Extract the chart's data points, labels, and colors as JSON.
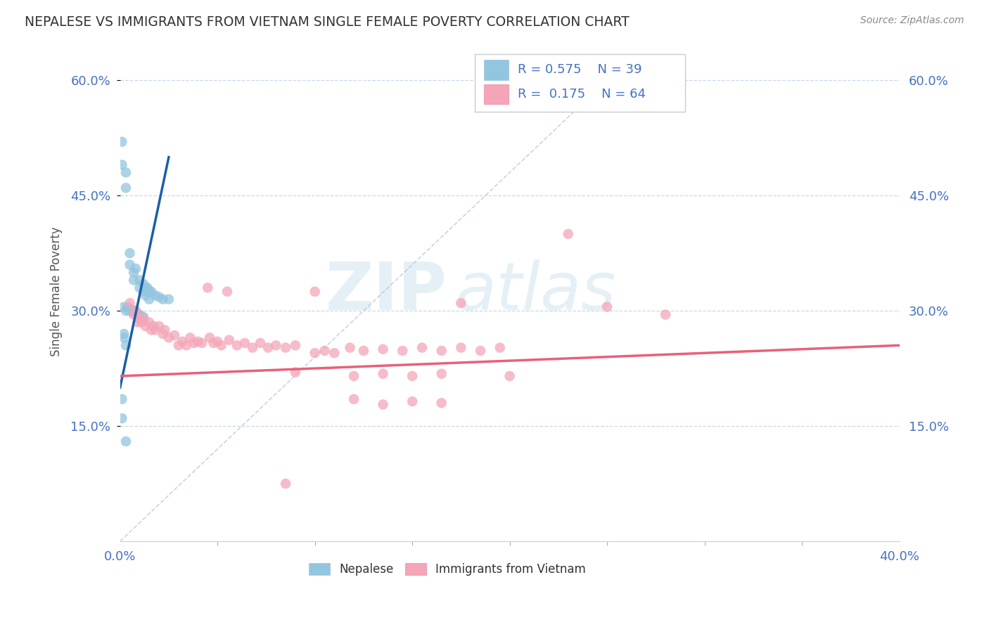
{
  "title": "NEPALESE VS IMMIGRANTS FROM VIETNAM SINGLE FEMALE POVERTY CORRELATION CHART",
  "source": "Source: ZipAtlas.com",
  "ylabel": "Single Female Poverty",
  "watermark_zip": "ZIP",
  "watermark_atlas": "atlas",
  "xmin": 0.0,
  "xmax": 0.4,
  "ymin": 0.0,
  "ymax": 0.65,
  "yticks": [
    0.15,
    0.3,
    0.45,
    0.6
  ],
  "ytick_labels": [
    "15.0%",
    "30.0%",
    "45.0%",
    "60.0%"
  ],
  "xticks": [
    0.0,
    0.4
  ],
  "xtick_labels": [
    "0.0%",
    "40.0%"
  ],
  "nepalese_color": "#92c5de",
  "vietnam_color": "#f4a6b8",
  "nepalese_line_color": "#1a5fa8",
  "vietnam_line_color": "#e8607a",
  "background_color": "#ffffff",
  "grid_color": "#c8d8ea",
  "nepalese_points": [
    [
      0.001,
      0.52
    ],
    [
      0.001,
      0.49
    ],
    [
      0.003,
      0.48
    ],
    [
      0.003,
      0.46
    ],
    [
      0.005,
      0.375
    ],
    [
      0.005,
      0.36
    ],
    [
      0.007,
      0.35
    ],
    [
      0.007,
      0.34
    ],
    [
      0.008,
      0.355
    ],
    [
      0.01,
      0.34
    ],
    [
      0.01,
      0.33
    ],
    [
      0.012,
      0.335
    ],
    [
      0.012,
      0.325
    ],
    [
      0.013,
      0.33
    ],
    [
      0.013,
      0.32
    ],
    [
      0.014,
      0.33
    ],
    [
      0.015,
      0.325
    ],
    [
      0.015,
      0.315
    ],
    [
      0.016,
      0.325
    ],
    [
      0.018,
      0.32
    ],
    [
      0.02,
      0.318
    ],
    [
      0.022,
      0.315
    ],
    [
      0.025,
      0.315
    ],
    [
      0.002,
      0.305
    ],
    [
      0.003,
      0.3
    ],
    [
      0.004,
      0.305
    ],
    [
      0.005,
      0.3
    ],
    [
      0.006,
      0.302
    ],
    [
      0.007,
      0.298
    ],
    [
      0.008,
      0.3
    ],
    [
      0.009,
      0.295
    ],
    [
      0.01,
      0.295
    ],
    [
      0.01,
      0.29
    ],
    [
      0.012,
      0.292
    ],
    [
      0.012,
      0.288
    ],
    [
      0.002,
      0.27
    ],
    [
      0.002,
      0.265
    ],
    [
      0.003,
      0.255
    ],
    [
      0.001,
      0.185
    ],
    [
      0.001,
      0.16
    ],
    [
      0.003,
      0.13
    ]
  ],
  "vietnam_points": [
    [
      0.005,
      0.31
    ],
    [
      0.007,
      0.295
    ],
    [
      0.008,
      0.3
    ],
    [
      0.009,
      0.285
    ],
    [
      0.01,
      0.29
    ],
    [
      0.011,
      0.285
    ],
    [
      0.012,
      0.29
    ],
    [
      0.013,
      0.28
    ],
    [
      0.015,
      0.285
    ],
    [
      0.016,
      0.275
    ],
    [
      0.017,
      0.28
    ],
    [
      0.018,
      0.275
    ],
    [
      0.02,
      0.28
    ],
    [
      0.022,
      0.27
    ],
    [
      0.023,
      0.275
    ],
    [
      0.025,
      0.265
    ],
    [
      0.028,
      0.268
    ],
    [
      0.03,
      0.255
    ],
    [
      0.032,
      0.26
    ],
    [
      0.034,
      0.255
    ],
    [
      0.036,
      0.265
    ],
    [
      0.038,
      0.258
    ],
    [
      0.04,
      0.26
    ],
    [
      0.042,
      0.258
    ],
    [
      0.046,
      0.265
    ],
    [
      0.048,
      0.258
    ],
    [
      0.05,
      0.26
    ],
    [
      0.052,
      0.255
    ],
    [
      0.056,
      0.262
    ],
    [
      0.06,
      0.255
    ],
    [
      0.064,
      0.258
    ],
    [
      0.068,
      0.252
    ],
    [
      0.072,
      0.258
    ],
    [
      0.076,
      0.252
    ],
    [
      0.08,
      0.255
    ],
    [
      0.085,
      0.252
    ],
    [
      0.09,
      0.255
    ],
    [
      0.1,
      0.245
    ],
    [
      0.105,
      0.248
    ],
    [
      0.11,
      0.245
    ],
    [
      0.118,
      0.252
    ],
    [
      0.125,
      0.248
    ],
    [
      0.135,
      0.25
    ],
    [
      0.145,
      0.248
    ],
    [
      0.155,
      0.252
    ],
    [
      0.165,
      0.248
    ],
    [
      0.175,
      0.252
    ],
    [
      0.185,
      0.248
    ],
    [
      0.195,
      0.252
    ],
    [
      0.045,
      0.33
    ],
    [
      0.055,
      0.325
    ],
    [
      0.1,
      0.325
    ],
    [
      0.175,
      0.31
    ],
    [
      0.23,
      0.4
    ],
    [
      0.25,
      0.305
    ],
    [
      0.28,
      0.295
    ],
    [
      0.09,
      0.22
    ],
    [
      0.12,
      0.215
    ],
    [
      0.135,
      0.218
    ],
    [
      0.15,
      0.215
    ],
    [
      0.165,
      0.218
    ],
    [
      0.2,
      0.215
    ],
    [
      0.12,
      0.185
    ],
    [
      0.135,
      0.178
    ],
    [
      0.15,
      0.182
    ],
    [
      0.165,
      0.18
    ],
    [
      0.085,
      0.075
    ]
  ]
}
